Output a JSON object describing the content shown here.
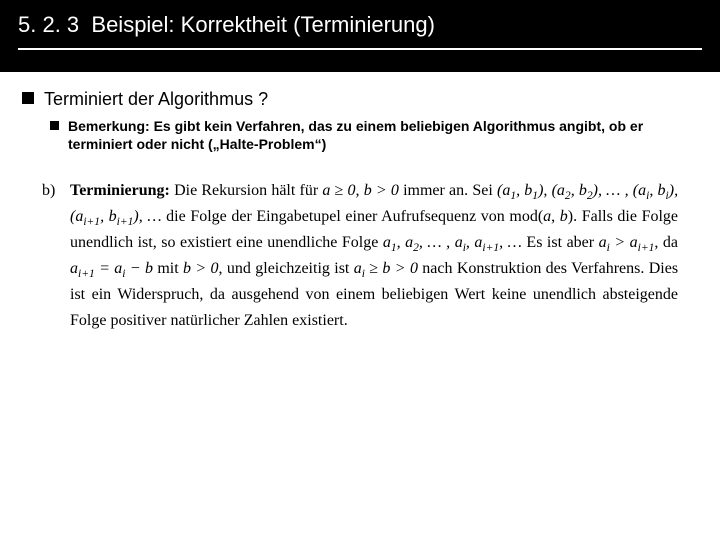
{
  "header": {
    "section_number": "5. 2. 3",
    "title": "Beispiel: Korrektheit (Terminierung)"
  },
  "bullets": {
    "main": "Terminiert der Algorithmus ?",
    "sub": "Bemerkung: Es gibt kein Verfahren, das zu einem beliebigen Algorithmus angibt, ob er terminiert oder nicht („Halte-Problem“)"
  },
  "proof": {
    "label": "b)",
    "heading": "Terminierung:",
    "line1_a": "Die Rekursion hält für ",
    "cond1": "a ≥ 0, b > 0",
    "line1_b": " immer an. Sei ",
    "seq1": "(a₁, b₁), (a₂, b₂), … , (aᵢ, bᵢ), (aᵢ₊₁, bᵢ₊₁), …",
    "line2_a": " die Folge der Eingabetupel einer Aufrufsequenz von ",
    "func": "mod(a, b)",
    "line2_b": ". Falls die Folge unendlich ist, so existiert eine unendliche Folge ",
    "seq2": "a₁, a₂, … , aᵢ, aᵢ₊₁, …",
    "line3_a": " Es ist aber ",
    "rel1": "aᵢ > aᵢ₊₁",
    "line3_b": ", da ",
    "rel2": "aᵢ₊₁ = aᵢ − b",
    "line3_c": " mit ",
    "rel3": "b > 0",
    "line3_d": ", und gleichzeitig ist ",
    "rel4": "aᵢ ≥ b > 0",
    "line3_e": " nach Konstruktion des Verfahrens. Dies ist ein Widerspruch, da ausgehend von einem beliebigen Wert keine unendlich absteigende Folge positiver natürlicher Zahlen existiert."
  },
  "style": {
    "background": "#ffffff",
    "header_bg": "#000000",
    "header_fg": "#ffffff",
    "title_fontsize": 22,
    "body_fontsize": 18,
    "sub_fontsize": 14,
    "proof_fontsize": 16,
    "proof_font": "Times New Roman"
  }
}
